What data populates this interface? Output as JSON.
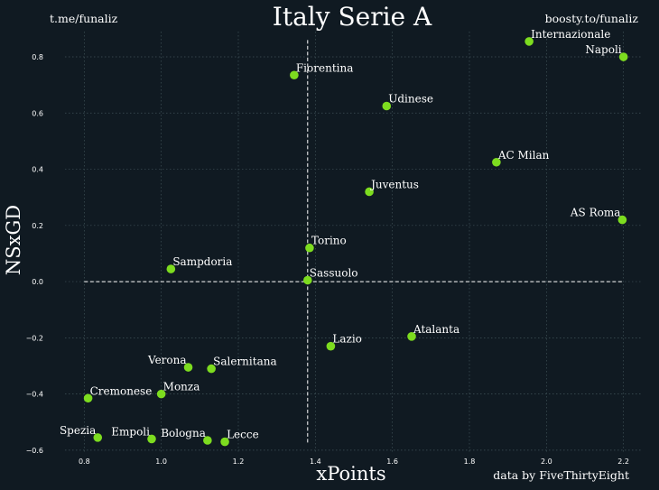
{
  "chart_data": {
    "type": "scatter",
    "title": "Italy Serie A",
    "xlabel": "xPoints",
    "ylabel": "NSxGD",
    "xlim": [
      0.75,
      2.25
    ],
    "ylim": [
      -0.61,
      0.89
    ],
    "x_ticks": [
      0.8,
      1.0,
      1.2,
      1.4,
      1.6,
      1.8,
      2.0,
      2.2
    ],
    "y_ticks": [
      -0.6,
      -0.4,
      -0.2,
      0.0,
      0.2,
      0.4,
      0.6,
      0.8
    ],
    "x_tick_labels": [
      "0.8",
      "1.0",
      "1.2",
      "1.4",
      "1.6",
      "1.8",
      "2.0",
      "2.2"
    ],
    "y_tick_labels": [
      "−0.6",
      "−0.4",
      "−0.2",
      "0.0",
      "0.2",
      "0.4",
      "0.6",
      "0.8"
    ],
    "grid": true,
    "reference_lines": {
      "vertical_x": 1.38,
      "vertical_y_range": [
        -0.58,
        0.86
      ],
      "horizontal_y": 0.0,
      "horizontal_x_range": [
        0.8,
        2.2
      ]
    },
    "points": [
      {
        "team": "Internazionale",
        "x": 1.955,
        "y": 0.855,
        "align": "start"
      },
      {
        "team": "Napoli",
        "x": 2.2,
        "y": 0.8,
        "align": "end"
      },
      {
        "team": "Fiorentina",
        "x": 1.345,
        "y": 0.735,
        "align": "start"
      },
      {
        "team": "Udinese",
        "x": 1.585,
        "y": 0.625,
        "align": "start"
      },
      {
        "team": "AC Milan",
        "x": 1.87,
        "y": 0.425,
        "align": "start"
      },
      {
        "team": "Juventus",
        "x": 1.54,
        "y": 0.32,
        "align": "start"
      },
      {
        "team": "AS Roma",
        "x": 2.197,
        "y": 0.22,
        "align": "end"
      },
      {
        "team": "Torino",
        "x": 1.385,
        "y": 0.12,
        "align": "start"
      },
      {
        "team": "Sampdoria",
        "x": 1.025,
        "y": 0.045,
        "align": "start"
      },
      {
        "team": "Sassuolo",
        "x": 1.38,
        "y": 0.005,
        "align": "start"
      },
      {
        "team": "Atalanta",
        "x": 1.65,
        "y": -0.195,
        "align": "start"
      },
      {
        "team": "Lazio",
        "x": 1.44,
        "y": -0.23,
        "align": "start"
      },
      {
        "team": "Verona",
        "x": 1.07,
        "y": -0.305,
        "align": "end"
      },
      {
        "team": "Salernitana",
        "x": 1.13,
        "y": -0.31,
        "align": "start"
      },
      {
        "team": "Cremonese",
        "x": 0.81,
        "y": -0.415,
        "align": "start"
      },
      {
        "team": "Monza",
        "x": 1.0,
        "y": -0.4,
        "align": "start"
      },
      {
        "team": "Spezia",
        "x": 0.835,
        "y": -0.555,
        "align": "end"
      },
      {
        "team": "Empoli",
        "x": 0.975,
        "y": -0.56,
        "align": "end"
      },
      {
        "team": "Bologna",
        "x": 1.12,
        "y": -0.565,
        "align": "end"
      },
      {
        "team": "Lecce",
        "x": 1.165,
        "y": -0.57,
        "align": "start"
      }
    ],
    "colors": {
      "background": "#101a22",
      "marker": "#7ddc1f",
      "text": "#ffffff",
      "grid": "#3f5258"
    }
  },
  "annotations": {
    "top_left": "t.me/funaliz",
    "top_right": "boosty.to/funaliz",
    "bottom_right": "data by FiveThirtyEight"
  }
}
